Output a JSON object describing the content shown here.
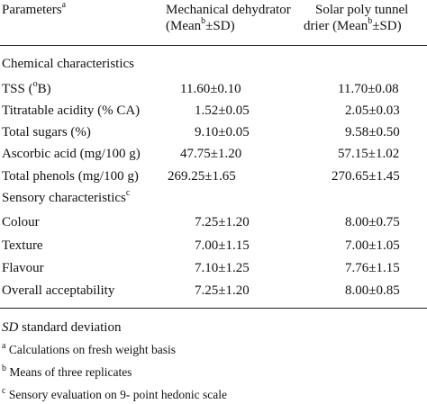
{
  "header": {
    "parameters": "Parameters",
    "parameters_sup": "a",
    "col1_line1": "Mechanical dehydrator",
    "col1_line2_pre": "(Mean",
    "col1_line2_sup": "b",
    "col1_line2_post": "±SD)",
    "col2_line1": "Solar poly tunnel",
    "col2_line2_pre": "drier (Mean",
    "col2_line2_sup": "b",
    "col2_line2_post": "±SD)"
  },
  "sections": [
    {
      "title": "Chemical characteristics",
      "title_sup": "",
      "rows": [
        {
          "label_pre": "TSS (",
          "label_sup": "o",
          "label_post": "B)",
          "mech": "11.60±0.10",
          "solar": "11.70±0.08"
        },
        {
          "label_pre": "Titratable acidity (% CA)",
          "label_sup": "",
          "label_post": "",
          "mech": "1.52±0.05",
          "solar": "2.05±0.03"
        },
        {
          "label_pre": "Total sugars (%)",
          "label_sup": "",
          "label_post": "",
          "mech": "9.10±0.05",
          "solar": "9.58±0.50"
        },
        {
          "label_pre": "Ascorbic acid (mg/100 g)",
          "label_sup": "",
          "label_post": "",
          "mech": "47.75±1.20",
          "solar": "57.15±1.02"
        },
        {
          "label_pre": "Total phenols (mg/100 g)",
          "label_sup": "",
          "label_post": "",
          "mech": "269.25±1.65",
          "solar": "270.65±1.45"
        }
      ]
    },
    {
      "title": "Sensory characteristics",
      "title_sup": "c",
      "rows": [
        {
          "label_pre": "Colour",
          "label_sup": "",
          "label_post": "",
          "mech": "7.25±1.20",
          "solar": "8.00±0.75"
        },
        {
          "label_pre": "Texture",
          "label_sup": "",
          "label_post": "",
          "mech": "7.00±1.15",
          "solar": "7.00±1.05"
        },
        {
          "label_pre": "Flavour",
          "label_sup": "",
          "label_post": "",
          "mech": "7.10±1.25",
          "solar": "7.76±1.15"
        },
        {
          "label_pre": "Overall acceptability",
          "label_sup": "",
          "label_post": "",
          "mech": "7.25±1.20",
          "solar": "8.00±0.85"
        }
      ]
    }
  ],
  "footnotes": {
    "sd_abbr": "SD",
    "sd_text": " standard deviation",
    "a_sup": "a",
    "a_text": " Calculations on fresh weight basis",
    "b_sup": "b",
    "b_text": " Means of three replicates",
    "c_sup": "c",
    "c_text": " Sensory evaluation on 9- point hedonic scale"
  }
}
